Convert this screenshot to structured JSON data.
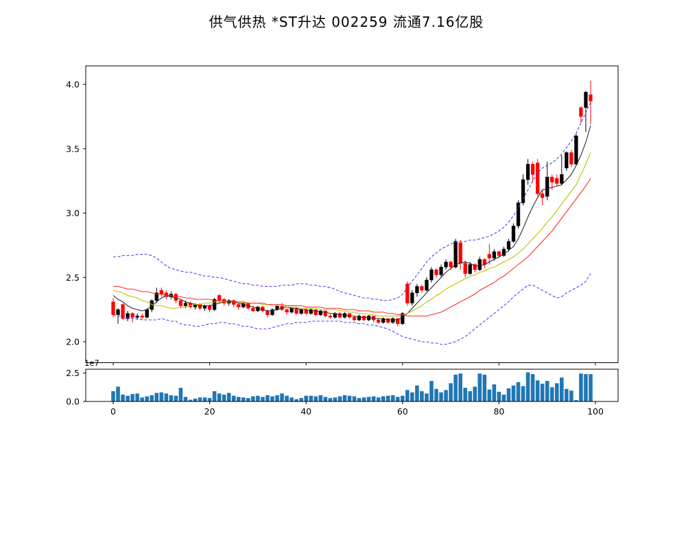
{
  "title": "供气供热 *ST升达 002259 流通7.16亿股",
  "colors": {
    "up_candle": "#000000",
    "down_candle": "#ff0000",
    "ma_fast": "#2b2b2b",
    "ma_mid": "#bfbf00",
    "ma_slow": "#ff2a2a",
    "bollinger_band": "#4040ff",
    "volume_bar": "#1f77b4",
    "axis": "#000000"
  },
  "chart_data": [
    {
      "type": "candlestick",
      "title": "供气供热 *ST升达 002259 流通7.16亿股",
      "xlabel": "",
      "ylabel": "",
      "ylim": [
        1.84,
        4.14
      ],
      "xlim": [
        -5,
        104.5
      ],
      "yticks": [
        2.0,
        2.5,
        3.0,
        3.5,
        4.0
      ],
      "xticks": [
        0,
        20,
        40,
        60,
        80,
        100
      ],
      "grid": false,
      "legend": "none",
      "ohlc": [
        [
          2.31,
          2.34,
          2.19,
          2.21
        ],
        [
          2.21,
          2.26,
          2.14,
          2.25
        ],
        [
          2.29,
          2.3,
          2.17,
          2.18
        ],
        [
          2.18,
          2.24,
          2.16,
          2.22
        ],
        [
          2.22,
          2.23,
          2.15,
          2.19
        ],
        [
          2.19,
          2.22,
          2.17,
          2.2
        ],
        [
          2.2,
          2.22,
          2.17,
          2.19
        ],
        [
          2.19,
          2.26,
          2.18,
          2.25
        ],
        [
          2.25,
          2.33,
          2.23,
          2.32
        ],
        [
          2.32,
          2.42,
          2.3,
          2.38
        ],
        [
          2.4,
          2.42,
          2.35,
          2.37
        ],
        [
          2.38,
          2.4,
          2.33,
          2.35
        ],
        [
          2.35,
          2.39,
          2.33,
          2.37
        ],
        [
          2.37,
          2.38,
          2.3,
          2.32
        ],
        [
          2.32,
          2.33,
          2.26,
          2.28
        ],
        [
          2.28,
          2.32,
          2.26,
          2.3
        ],
        [
          2.3,
          2.31,
          2.26,
          2.27
        ],
        [
          2.27,
          2.3,
          2.25,
          2.29
        ],
        [
          2.29,
          2.3,
          2.25,
          2.26
        ],
        [
          2.26,
          2.29,
          2.24,
          2.28
        ],
        [
          2.28,
          2.29,
          2.23,
          2.25
        ],
        [
          2.25,
          2.34,
          2.24,
          2.33
        ],
        [
          2.36,
          2.37,
          2.3,
          2.32
        ],
        [
          2.33,
          2.34,
          2.28,
          2.3
        ],
        [
          2.3,
          2.33,
          2.28,
          2.32
        ],
        [
          2.32,
          2.33,
          2.27,
          2.29
        ],
        [
          2.29,
          2.3,
          2.25,
          2.27
        ],
        [
          2.27,
          2.31,
          2.26,
          2.3
        ],
        [
          2.3,
          2.3,
          2.25,
          2.26
        ],
        [
          2.26,
          2.28,
          2.23,
          2.24
        ],
        [
          2.24,
          2.28,
          2.23,
          2.27
        ],
        [
          2.27,
          2.28,
          2.23,
          2.24
        ],
        [
          2.24,
          2.25,
          2.19,
          2.21
        ],
        [
          2.21,
          2.26,
          2.2,
          2.25
        ],
        [
          2.25,
          2.29,
          2.24,
          2.28
        ],
        [
          2.28,
          2.3,
          2.24,
          2.25
        ],
        [
          2.25,
          2.26,
          2.21,
          2.23
        ],
        [
          2.23,
          2.27,
          2.22,
          2.26
        ],
        [
          2.26,
          2.27,
          2.21,
          2.22
        ],
        [
          2.22,
          2.26,
          2.21,
          2.25
        ],
        [
          2.25,
          2.26,
          2.21,
          2.22
        ],
        [
          2.22,
          2.26,
          2.21,
          2.25
        ],
        [
          2.25,
          2.25,
          2.2,
          2.21
        ],
        [
          2.21,
          2.25,
          2.2,
          2.24
        ],
        [
          2.24,
          2.24,
          2.19,
          2.2
        ],
        [
          2.2,
          2.22,
          2.18,
          2.19
        ],
        [
          2.19,
          2.23,
          2.18,
          2.22
        ],
        [
          2.22,
          2.23,
          2.18,
          2.19
        ],
        [
          2.19,
          2.23,
          2.18,
          2.22
        ],
        [
          2.22,
          2.22,
          2.18,
          2.19
        ],
        [
          2.19,
          2.2,
          2.16,
          2.17
        ],
        [
          2.17,
          2.21,
          2.16,
          2.2
        ],
        [
          2.2,
          2.2,
          2.16,
          2.17
        ],
        [
          2.17,
          2.21,
          2.16,
          2.2
        ],
        [
          2.2,
          2.2,
          2.15,
          2.17
        ],
        [
          2.17,
          2.18,
          2.14,
          2.15
        ],
        [
          2.15,
          2.19,
          2.14,
          2.18
        ],
        [
          2.18,
          2.18,
          2.14,
          2.15
        ],
        [
          2.15,
          2.19,
          2.14,
          2.18
        ],
        [
          2.18,
          2.18,
          2.12,
          2.14
        ],
        [
          2.14,
          2.23,
          2.13,
          2.22
        ],
        [
          2.45,
          2.47,
          2.28,
          2.3
        ],
        [
          2.3,
          2.4,
          2.28,
          2.38
        ],
        [
          2.38,
          2.45,
          2.35,
          2.43
        ],
        [
          2.43,
          2.44,
          2.38,
          2.4
        ],
        [
          2.4,
          2.5,
          2.39,
          2.48
        ],
        [
          2.48,
          2.58,
          2.46,
          2.56
        ],
        [
          2.56,
          2.57,
          2.5,
          2.52
        ],
        [
          2.52,
          2.6,
          2.5,
          2.58
        ],
        [
          2.58,
          2.64,
          2.56,
          2.62
        ],
        [
          2.62,
          2.63,
          2.56,
          2.58
        ],
        [
          2.58,
          2.8,
          2.57,
          2.78
        ],
        [
          2.77,
          2.79,
          2.56,
          2.61
        ],
        [
          2.61,
          2.63,
          2.5,
          2.53
        ],
        [
          2.53,
          2.62,
          2.52,
          2.6
        ],
        [
          2.6,
          2.61,
          2.54,
          2.56
        ],
        [
          2.56,
          2.66,
          2.55,
          2.64
        ],
        [
          2.64,
          2.65,
          2.57,
          2.6
        ],
        [
          2.68,
          2.76,
          2.6,
          2.65
        ],
        [
          2.65,
          2.72,
          2.63,
          2.7
        ],
        [
          2.7,
          2.71,
          2.65,
          2.67
        ],
        [
          2.67,
          2.74,
          2.66,
          2.72
        ],
        [
          2.72,
          2.8,
          2.7,
          2.78
        ],
        [
          2.78,
          2.92,
          2.77,
          2.9
        ],
        [
          2.9,
          3.1,
          2.88,
          3.08
        ],
        [
          3.08,
          3.3,
          3.06,
          3.26
        ],
        [
          3.26,
          3.42,
          3.22,
          3.38
        ],
        [
          3.38,
          3.4,
          3.24,
          3.3
        ],
        [
          3.39,
          3.42,
          3.13,
          3.15
        ],
        [
          3.15,
          3.18,
          3.06,
          3.12
        ],
        [
          3.13,
          3.4,
          3.1,
          3.28
        ],
        [
          3.28,
          3.3,
          3.18,
          3.24
        ],
        [
          3.27,
          3.3,
          3.21,
          3.23
        ],
        [
          3.23,
          3.45,
          3.22,
          3.3
        ],
        [
          3.35,
          3.48,
          3.33,
          3.47
        ],
        [
          3.47,
          3.49,
          3.36,
          3.38
        ],
        [
          3.38,
          3.62,
          3.37,
          3.6
        ],
        [
          3.82,
          3.83,
          3.7,
          3.75
        ],
        [
          3.82,
          3.95,
          3.63,
          3.94
        ],
        [
          3.92,
          4.03,
          3.69,
          3.87
        ]
      ],
      "overlays": {
        "ma_fast": [
          2.36,
          2.33,
          2.31,
          2.28,
          2.26,
          2.25,
          2.24,
          2.25,
          2.28,
          2.31,
          2.34,
          2.36,
          2.35,
          2.34,
          2.33,
          2.31,
          2.3,
          2.29,
          2.28,
          2.28,
          2.28,
          2.29,
          2.3,
          2.31,
          2.32,
          2.31,
          2.3,
          2.29,
          2.28,
          2.27,
          2.26,
          2.25,
          2.24,
          2.24,
          2.25,
          2.26,
          2.27,
          2.26,
          2.26,
          2.25,
          2.25,
          2.24,
          2.24,
          2.23,
          2.23,
          2.22,
          2.22,
          2.21,
          2.21,
          2.2,
          2.2,
          2.19,
          2.19,
          2.19,
          2.18,
          2.18,
          2.18,
          2.17,
          2.17,
          2.17,
          2.19,
          2.22,
          2.26,
          2.3,
          2.34,
          2.38,
          2.42,
          2.46,
          2.5,
          2.54,
          2.57,
          2.6,
          2.61,
          2.62,
          2.61,
          2.59,
          2.59,
          2.6,
          2.62,
          2.64,
          2.66,
          2.68,
          2.71,
          2.74,
          2.8,
          2.88,
          2.97,
          3.05,
          3.12,
          3.18,
          3.19,
          3.2,
          3.21,
          3.22,
          3.26,
          3.3,
          3.37,
          3.45,
          3.55,
          3.68
        ],
        "ma_mid": [
          2.4,
          2.39,
          2.38,
          2.36,
          2.35,
          2.34,
          2.32,
          2.31,
          2.29,
          2.28,
          2.28,
          2.27,
          2.26,
          2.26,
          2.27,
          2.27,
          2.28,
          2.29,
          2.29,
          2.3,
          2.3,
          2.31,
          2.31,
          2.31,
          2.31,
          2.31,
          2.31,
          2.3,
          2.3,
          2.3,
          2.3,
          2.29,
          2.29,
          2.28,
          2.28,
          2.28,
          2.27,
          2.27,
          2.27,
          2.26,
          2.26,
          2.26,
          2.26,
          2.25,
          2.25,
          2.25,
          2.25,
          2.24,
          2.24,
          2.23,
          2.23,
          2.22,
          2.22,
          2.21,
          2.21,
          2.2,
          2.2,
          2.2,
          2.2,
          2.2,
          2.21,
          2.22,
          2.24,
          2.26,
          2.28,
          2.31,
          2.33,
          2.36,
          2.38,
          2.41,
          2.43,
          2.45,
          2.47,
          2.49,
          2.51,
          2.52,
          2.54,
          2.55,
          2.57,
          2.58,
          2.6,
          2.62,
          2.64,
          2.66,
          2.69,
          2.72,
          2.76,
          2.8,
          2.84,
          2.88,
          2.93,
          2.97,
          3.02,
          3.07,
          3.12,
          3.17,
          3.22,
          3.3,
          3.38,
          3.47
        ],
        "ma_slow": [
          2.43,
          2.43,
          2.42,
          2.41,
          2.41,
          2.4,
          2.39,
          2.39,
          2.38,
          2.37,
          2.37,
          2.36,
          2.36,
          2.35,
          2.35,
          2.34,
          2.34,
          2.33,
          2.33,
          2.33,
          2.33,
          2.32,
          2.32,
          2.32,
          2.31,
          2.31,
          2.31,
          2.31,
          2.3,
          2.3,
          2.3,
          2.3,
          2.29,
          2.29,
          2.29,
          2.29,
          2.28,
          2.28,
          2.28,
          2.28,
          2.27,
          2.27,
          2.27,
          2.27,
          2.26,
          2.26,
          2.26,
          2.26,
          2.25,
          2.25,
          2.25,
          2.24,
          2.24,
          2.24,
          2.23,
          2.23,
          2.23,
          2.22,
          2.22,
          2.21,
          2.21,
          2.2,
          2.2,
          2.2,
          2.2,
          2.2,
          2.21,
          2.22,
          2.23,
          2.25,
          2.27,
          2.29,
          2.31,
          2.33,
          2.35,
          2.37,
          2.4,
          2.42,
          2.44,
          2.46,
          2.49,
          2.51,
          2.54,
          2.57,
          2.6,
          2.63,
          2.66,
          2.7,
          2.74,
          2.78,
          2.82,
          2.86,
          2.91,
          2.96,
          3.01,
          3.06,
          3.11,
          3.16,
          3.21,
          3.27
        ],
        "boll_upper": [
          2.66,
          2.66,
          2.67,
          2.67,
          2.67,
          2.68,
          2.68,
          2.68,
          2.67,
          2.65,
          2.62,
          2.59,
          2.57,
          2.56,
          2.55,
          2.54,
          2.54,
          2.53,
          2.52,
          2.51,
          2.51,
          2.5,
          2.5,
          2.49,
          2.48,
          2.47,
          2.46,
          2.45,
          2.45,
          2.44,
          2.44,
          2.43,
          2.43,
          2.43,
          2.43,
          2.44,
          2.44,
          2.44,
          2.45,
          2.45,
          2.45,
          2.44,
          2.44,
          2.43,
          2.43,
          2.42,
          2.41,
          2.39,
          2.38,
          2.37,
          2.36,
          2.35,
          2.34,
          2.34,
          2.33,
          2.33,
          2.32,
          2.32,
          2.33,
          2.34,
          2.37,
          2.42,
          2.47,
          2.52,
          2.57,
          2.62,
          2.66,
          2.69,
          2.72,
          2.74,
          2.76,
          2.77,
          2.78,
          2.78,
          2.79,
          2.79,
          2.8,
          2.81,
          2.82,
          2.84,
          2.86,
          2.89,
          2.93,
          2.98,
          3.04,
          3.11,
          3.18,
          3.25,
          3.31,
          3.35,
          3.37,
          3.39,
          3.42,
          3.46,
          3.51,
          3.56,
          3.62,
          3.7,
          3.78,
          3.86
        ],
        "boll_lower": [
          2.21,
          2.2,
          2.2,
          2.19,
          2.18,
          2.18,
          2.17,
          2.17,
          2.17,
          2.17,
          2.18,
          2.17,
          2.16,
          2.16,
          2.14,
          2.13,
          2.13,
          2.12,
          2.12,
          2.13,
          2.14,
          2.14,
          2.15,
          2.15,
          2.14,
          2.14,
          2.13,
          2.12,
          2.12,
          2.11,
          2.1,
          2.1,
          2.1,
          2.11,
          2.12,
          2.13,
          2.14,
          2.14,
          2.15,
          2.15,
          2.15,
          2.16,
          2.16,
          2.16,
          2.16,
          2.16,
          2.16,
          2.16,
          2.15,
          2.15,
          2.15,
          2.14,
          2.14,
          2.13,
          2.13,
          2.12,
          2.11,
          2.1,
          2.08,
          2.06,
          2.04,
          2.03,
          2.02,
          2.01,
          2.0,
          2.0,
          1.99,
          1.99,
          1.98,
          1.98,
          1.99,
          2.0,
          2.02,
          2.04,
          2.07,
          2.1,
          2.13,
          2.16,
          2.19,
          2.22,
          2.25,
          2.28,
          2.31,
          2.35,
          2.38,
          2.41,
          2.44,
          2.44,
          2.42,
          2.4,
          2.38,
          2.36,
          2.34,
          2.35,
          2.38,
          2.4,
          2.42,
          2.44,
          2.47,
          2.53
        ]
      }
    },
    {
      "type": "bar",
      "name": "volume",
      "offset_label": "1e7",
      "ylim": [
        0,
        2.8
      ],
      "yticks": [
        0.0,
        2.5
      ],
      "xticks": [
        0,
        20,
        40,
        60,
        80,
        100
      ],
      "values": [
        0.9,
        1.3,
        0.6,
        0.5,
        0.65,
        0.7,
        0.35,
        0.45,
        0.55,
        0.75,
        0.8,
        0.7,
        0.55,
        0.5,
        1.2,
        0.4,
        0.15,
        0.25,
        0.35,
        0.35,
        0.3,
        0.9,
        0.7,
        0.6,
        0.75,
        0.5,
        0.4,
        0.35,
        0.3,
        0.45,
        0.5,
        0.4,
        0.55,
        0.45,
        0.55,
        0.7,
        0.5,
        0.35,
        0.2,
        0.3,
        0.5,
        0.5,
        0.45,
        0.55,
        0.4,
        0.3,
        0.35,
        0.45,
        0.55,
        0.5,
        0.45,
        0.3,
        0.35,
        0.4,
        0.45,
        0.35,
        0.45,
        0.5,
        0.55,
        0.4,
        0.5,
        1.0,
        0.8,
        1.4,
        0.9,
        0.7,
        1.8,
        1.1,
        0.8,
        1.0,
        1.6,
        2.35,
        2.45,
        1.2,
        0.9,
        1.3,
        2.45,
        2.35,
        1.05,
        1.5,
        0.85,
        0.6,
        1.15,
        1.4,
        1.7,
        1.35,
        2.55,
        2.4,
        1.85,
        1.55,
        1.8,
        1.25,
        1.6,
        2.1,
        1.1,
        0.95,
        0.12,
        2.45,
        2.4,
        2.4
      ]
    }
  ]
}
